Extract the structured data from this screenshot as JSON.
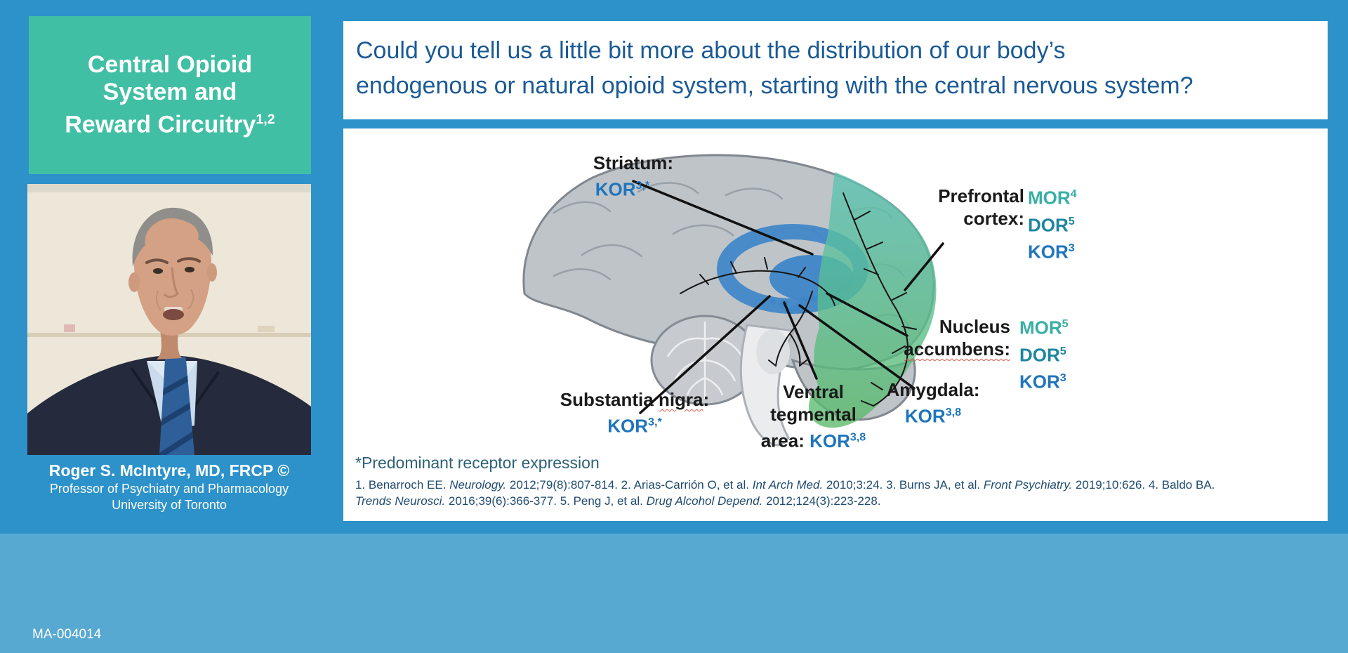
{
  "colors": {
    "background_top": "#2D92CA",
    "background_bottom": "#58A9D1",
    "sidebar_title_bg": "#41BFA5",
    "question_text": "#1A5A96",
    "kor_blue": "#1F75BC",
    "mor_teal": "#38AFA5",
    "dor_teal": "#1D86A0",
    "label_black": "#1A1A1A",
    "footnote_blue": "#2E6179",
    "refs_blue": "#1F4A6E"
  },
  "sidebar": {
    "title": {
      "lines": [
        "Central Opioid",
        "System and",
        "Reward Circuitry"
      ],
      "superscript": "1,2"
    },
    "speaker": {
      "name": "Roger S. McIntyre, MD, FRCP ©",
      "title": "Professor of Psychiatry and Pharmacology",
      "affiliation": "University of Toronto"
    }
  },
  "question": {
    "lines": [
      "Could you tell us a little bit more about the distribution of our body’s",
      "endogenous or natural opioid system, starting with the central nervous system?"
    ]
  },
  "diagram": {
    "regions": {
      "striatum": {
        "label": "Striatum:",
        "receptors": [
          {
            "text": "KOR",
            "sup": "3,*"
          }
        ]
      },
      "prefrontal_cortex": {
        "label_lines": [
          "Prefrontal",
          "cortex:"
        ],
        "receptors": [
          {
            "text": "MOR",
            "sup": "4"
          },
          {
            "text": "DOR",
            "sup": "5"
          },
          {
            "text": "KOR",
            "sup": "3"
          }
        ]
      },
      "nucleus_accumbens": {
        "label_lines": [
          "Nucleus",
          "accumbens:"
        ],
        "receptors": [
          {
            "text": "MOR",
            "sup": "5"
          },
          {
            "text": "DOR",
            "sup": "5"
          },
          {
            "text": "KOR",
            "sup": "3"
          }
        ]
      },
      "amygdala": {
        "label": "Amygdala:",
        "receptors": [
          {
            "text": "KOR",
            "sup": "3,8"
          }
        ]
      },
      "ventral_tegmental_area": {
        "label_lines": [
          "Ventral",
          "tegmental"
        ],
        "label_inline": "area:",
        "receptors": [
          {
            "text": "KOR",
            "sup": "3,8"
          }
        ]
      },
      "substantia_nigra": {
        "label_parts": [
          "Substantia ",
          "nigra",
          ":"
        ],
        "receptors": [
          {
            "text": "KOR",
            "sup": "3,*"
          }
        ]
      }
    },
    "footnote": "*Predominant receptor expression",
    "references": [
      [
        {
          "t": "1. Benarroch EE. "
        },
        {
          "t": "Neurology.",
          "i": true
        },
        {
          "t": " 2012;79(8):807-814. 2. Arias-Carrión O, et al. "
        },
        {
          "t": "Int Arch Med.",
          "i": true
        },
        {
          "t": " 2010;3:24. 3. Burns JA, et al. "
        },
        {
          "t": "Front Psychiatry.",
          "i": true
        },
        {
          "t": " 2019;10:626. 4. Baldo BA."
        }
      ],
      [
        {
          "t": "Trends Neurosci.",
          "i": true
        },
        {
          "t": " 2016;39(6):366-377. 5. Peng J, et al. "
        },
        {
          "t": "Drug Alcohol Depend.",
          "i": true
        },
        {
          "t": " 2012;124(3):223-228."
        }
      ]
    ]
  },
  "footer": {
    "code": "MA-004014"
  }
}
